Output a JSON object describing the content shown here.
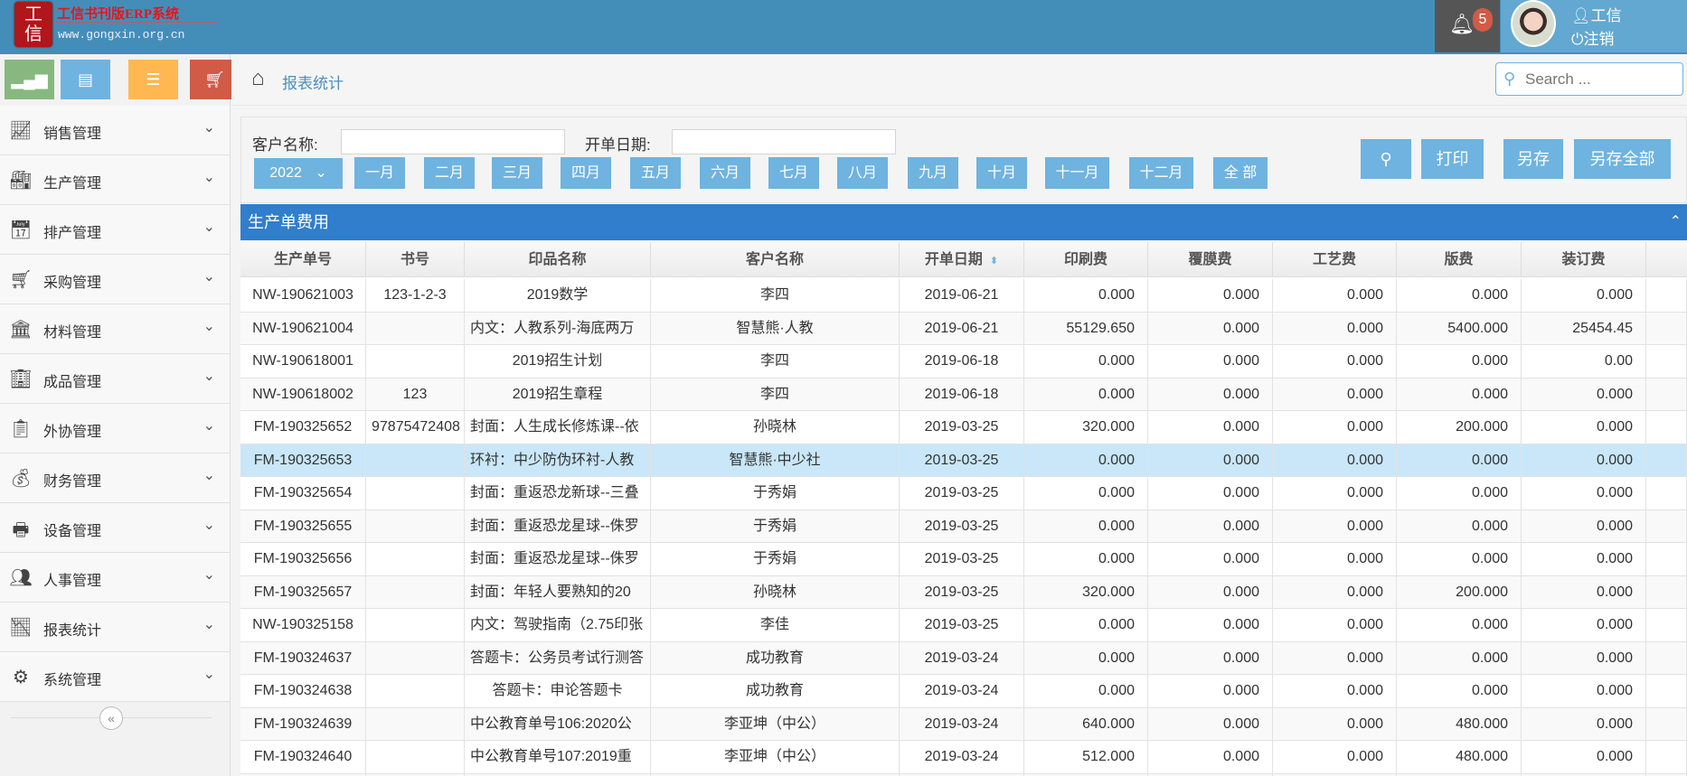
{
  "header": {
    "logo_chars": "工信",
    "brand": "工信书刊版ERP系统",
    "url": "www.gongxin.org.cn",
    "notification_count": "5",
    "user_name": "工信",
    "logout": "注销"
  },
  "quick_buttons": [
    {
      "icon": "signal-bars-icon",
      "color": "#87b87f"
    },
    {
      "icon": "newspaper-icon",
      "color": "#6fb3e0"
    },
    {
      "icon": "document-icon",
      "color": "#ffb752"
    },
    {
      "icon": "cart-icon",
      "color": "#d15b47"
    }
  ],
  "sidebar": {
    "items": [
      {
        "label": "销售管理",
        "icon": "chart-icon"
      },
      {
        "label": "生产管理",
        "icon": "factory-icon"
      },
      {
        "label": "排产管理",
        "icon": "schedule-icon"
      },
      {
        "label": "采购管理",
        "icon": "cart-icon"
      },
      {
        "label": "材料管理",
        "icon": "warehouse-icon"
      },
      {
        "label": "成品管理",
        "icon": "building-gear-icon"
      },
      {
        "label": "外协管理",
        "icon": "clipboard-icon"
      },
      {
        "label": "财务管理",
        "icon": "finance-icon"
      },
      {
        "label": "设备管理",
        "icon": "printer-icon"
      },
      {
        "label": "人事管理",
        "icon": "people-icon"
      },
      {
        "label": "报表统计",
        "icon": "line-chart-icon"
      },
      {
        "label": "系统管理",
        "icon": "gear-icon"
      }
    ]
  },
  "breadcrumb": {
    "current": "报表统计"
  },
  "search": {
    "placeholder": "Search ..."
  },
  "filter": {
    "customer_label": "客户名称:",
    "customer_value": "",
    "date_label": "开单日期:",
    "date_value": "",
    "year": "2022",
    "months": [
      "一月",
      "二月",
      "三月",
      "四月",
      "五月",
      "六月",
      "七月",
      "八月",
      "九月",
      "十月",
      "十一月",
      "十二月",
      "全 部"
    ],
    "print": "打印",
    "save_as": "另存",
    "save_all": "另存全部"
  },
  "panel": {
    "title": "生产单费用"
  },
  "table": {
    "columns": [
      "生产单号",
      "书号",
      "印品名称",
      "客户名称",
      "开单日期",
      "印刷费",
      "覆膜费",
      "工艺费",
      "版费",
      "装订费"
    ],
    "selected_row": 5,
    "rows": [
      [
        "NW-190621003",
        "123-1-2-3",
        "2019数学",
        "李四",
        "2019-06-21",
        "0.000",
        "0.000",
        "0.000",
        "0.000",
        "0.000"
      ],
      [
        "NW-190621004",
        "",
        "内文：人教系列-海底两万",
        "智慧熊·人教",
        "2019-06-21",
        "55129.650",
        "0.000",
        "0.000",
        "5400.000",
        "25454.45"
      ],
      [
        "NW-190618001",
        "",
        "2019招生计划",
        "李四",
        "2019-06-18",
        "0.000",
        "0.000",
        "0.000",
        "0.000",
        "0.00"
      ],
      [
        "NW-190618002",
        "123",
        "2019招生章程",
        "李四",
        "2019-06-18",
        "0.000",
        "0.000",
        "0.000",
        "0.000",
        "0.000"
      ],
      [
        "FM-190325652",
        "97875472408",
        "封面：人生成长修炼课--依",
        "孙晓林",
        "2019-03-25",
        "320.000",
        "0.000",
        "0.000",
        "200.000",
        "0.000"
      ],
      [
        "FM-190325653",
        "",
        "环衬：中少防伪环衬-人教",
        "智慧熊·中少社",
        "2019-03-25",
        "0.000",
        "0.000",
        "0.000",
        "0.000",
        "0.000"
      ],
      [
        "FM-190325654",
        "",
        "封面：重返恐龙新球--三叠",
        "于秀娟",
        "2019-03-25",
        "0.000",
        "0.000",
        "0.000",
        "0.000",
        "0.000"
      ],
      [
        "FM-190325655",
        "",
        "封面：重返恐龙星球--侏罗",
        "于秀娟",
        "2019-03-25",
        "0.000",
        "0.000",
        "0.000",
        "0.000",
        "0.000"
      ],
      [
        "FM-190325656",
        "",
        "封面：重返恐龙星球--侏罗",
        "于秀娟",
        "2019-03-25",
        "0.000",
        "0.000",
        "0.000",
        "0.000",
        "0.000"
      ],
      [
        "FM-190325657",
        "",
        "封面：年轻人要熟知的20",
        "孙晓林",
        "2019-03-25",
        "320.000",
        "0.000",
        "0.000",
        "200.000",
        "0.000"
      ],
      [
        "NW-190325158",
        "",
        "内文：驾驶指南（2.75印张",
        "李佳",
        "2019-03-25",
        "0.000",
        "0.000",
        "0.000",
        "0.000",
        "0.000"
      ],
      [
        "FM-190324637",
        "",
        "答题卡：公务员考试行测答",
        "成功教育",
        "2019-03-24",
        "0.000",
        "0.000",
        "0.000",
        "0.000",
        "0.000"
      ],
      [
        "FM-190324638",
        "",
        "答题卡：申论答题卡",
        "成功教育",
        "2019-03-24",
        "0.000",
        "0.000",
        "0.000",
        "0.000",
        "0.000"
      ],
      [
        "FM-190324639",
        "",
        "中公教育单号106:2020公",
        "李亚坤（中公）",
        "2019-03-24",
        "640.000",
        "0.000",
        "0.000",
        "480.000",
        "0.000"
      ],
      [
        "FM-190324640",
        "",
        "中公教育单号107:2019重",
        "李亚坤（中公）",
        "2019-03-24",
        "512.000",
        "0.000",
        "0.000",
        "480.000",
        "0.000"
      ],
      [
        "",
        "",
        "",
        "",
        "",
        "",
        "",
        "",
        "",
        ""
      ]
    ]
  },
  "colors": {
    "header": "#438eb9",
    "panel_header": "#307ecc",
    "button": "#6fb3e0",
    "selected_row": "#c9e7f8"
  }
}
